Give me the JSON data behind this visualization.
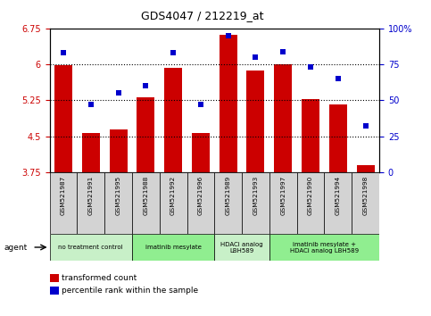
{
  "title": "GDS4047 / 212219_at",
  "samples": [
    "GSM521987",
    "GSM521991",
    "GSM521995",
    "GSM521988",
    "GSM521992",
    "GSM521996",
    "GSM521989",
    "GSM521993",
    "GSM521997",
    "GSM521990",
    "GSM521994",
    "GSM521998"
  ],
  "bar_values": [
    5.99,
    4.57,
    4.65,
    5.31,
    5.92,
    4.57,
    6.62,
    5.88,
    6.01,
    5.27,
    5.17,
    3.9
  ],
  "dot_values": [
    83,
    47,
    55,
    60,
    83,
    47,
    95,
    80,
    84,
    73,
    65,
    32
  ],
  "ylim_left": [
    3.75,
    6.75
  ],
  "ylim_right": [
    0,
    100
  ],
  "yticks_left": [
    3.75,
    4.5,
    5.25,
    6.0,
    6.75
  ],
  "yticks_right": [
    0,
    25,
    50,
    75,
    100
  ],
  "ytick_labels_left": [
    "3.75",
    "4.5",
    "5.25",
    "6",
    "6.75"
  ],
  "ytick_labels_right": [
    "0",
    "25",
    "50",
    "75",
    "100%"
  ],
  "hlines": [
    4.5,
    5.25,
    6.0
  ],
  "bar_color": "#cc0000",
  "dot_color": "#0000cc",
  "bar_bottom": 3.75,
  "agent_groups": [
    {
      "label": "no treatment control",
      "start": 0,
      "end": 3,
      "color": "#c8f0c8"
    },
    {
      "label": "imatinib mesylate",
      "start": 3,
      "end": 6,
      "color": "#90ee90"
    },
    {
      "label": "HDACi analog\nLBH589",
      "start": 6,
      "end": 8,
      "color": "#c8f0c8"
    },
    {
      "label": "imatinib mesylate +\nHDACi analog LBH589",
      "start": 8,
      "end": 12,
      "color": "#90ee90"
    }
  ],
  "agent_label": "agent",
  "legend_bar_label": "transformed count",
  "legend_dot_label": "percentile rank within the sample",
  "background_color": "#ffffff",
  "plot_bg_color": "#ffffff",
  "tick_label_color_left": "#cc0000",
  "tick_label_color_right": "#0000cc",
  "sample_box_color": "#d3d3d3"
}
